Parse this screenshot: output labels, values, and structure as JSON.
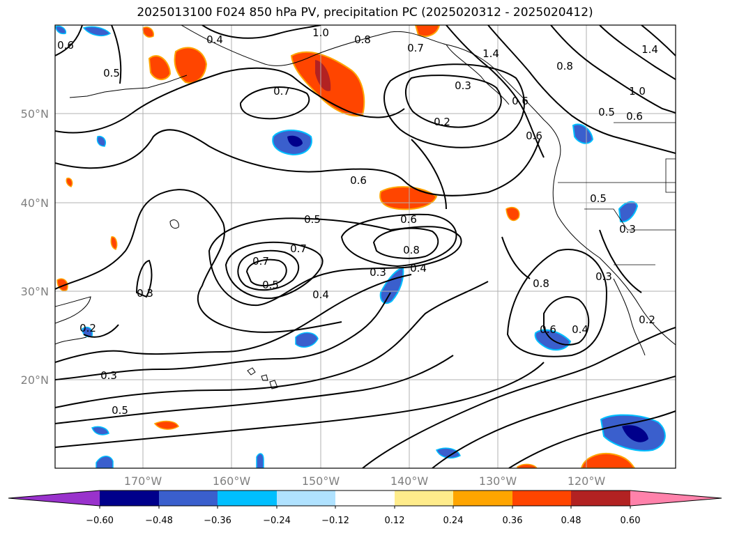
{
  "title": "2025013100 F024 850 hPa PV, precipitation PC (2025020312 - 2025020412)",
  "lon_labels": [
    "170°W",
    "160°W",
    "150°W",
    "140°W",
    "130°W",
    "120°W"
  ],
  "lat_labels": [
    "50°N",
    "40°N",
    "30°N",
    "20°N"
  ],
  "contour_labels": [
    "1.0",
    "0.4",
    "0.6",
    "0.5",
    "0.8",
    "0.7",
    "1.4",
    "0.8",
    "1.4",
    "1.0",
    "0.5",
    "0.6",
    "0.7",
    "0.3",
    "0.2",
    "0.6",
    "0.6",
    "0.5",
    "0.6",
    "0.6",
    "0.7",
    "0.7",
    "0.8",
    "0.5",
    "0.3",
    "0.4",
    "0.4",
    "0.3",
    "0.2",
    "0.3",
    "0.5",
    "0.8",
    "0.6",
    "0.4",
    "0.3",
    "0.2"
  ],
  "colorbar": {
    "ticks": [
      "−0.60",
      "−0.48",
      "−0.36",
      "−0.24",
      "−0.12",
      "0.12",
      "0.24",
      "0.36",
      "0.48",
      "0.60"
    ],
    "colors": [
      "#9932cc",
      "#00008b",
      "#3a5fcd",
      "#00bfff",
      "#b0e2ff",
      "#ffffff",
      "#ffec8b",
      "#ffa500",
      "#ff4500",
      "#b22222",
      "#ff82ab"
    ]
  }
}
